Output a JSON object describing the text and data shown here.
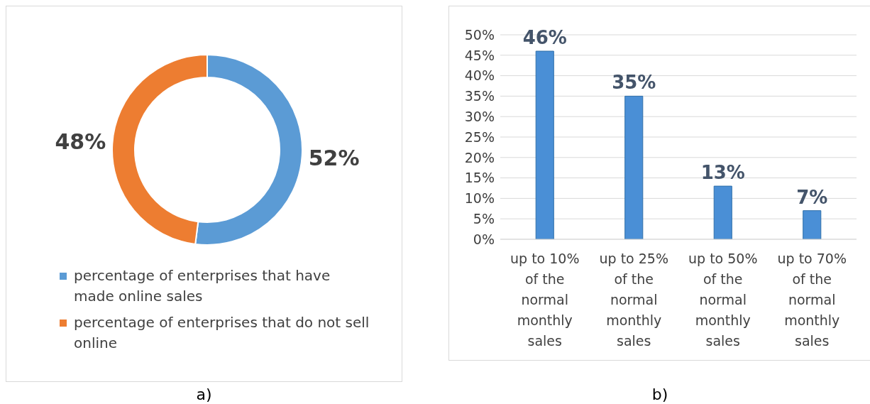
{
  "chart_data": [
    {
      "type": "donut",
      "categories": [
        "percentage of enterprises that have made online sales",
        "percentage of enterprises that do not sell online"
      ],
      "values": [
        52,
        48
      ],
      "colors": [
        "#5b9bd5",
        "#ed7d31"
      ],
      "value_labels": [
        "52%",
        "48%"
      ],
      "legend": "bottom",
      "annotations": [
        "a)"
      ]
    },
    {
      "type": "bar",
      "categories": [
        "up to 10% of the normal monthly sales",
        "up to 25% of the normal monthly sales",
        "up to 50% of the normal monthly sales",
        "up to 70% of the normal monthly sales"
      ],
      "values": [
        46,
        35,
        13,
        7
      ],
      "color": "#4a8fd6",
      "value_labels": [
        "46%",
        "35%",
        "13%",
        "7%"
      ],
      "ylim": [
        0,
        50
      ],
      "yticks": [
        {
          "value": 0,
          "label": "0%"
        },
        {
          "value": 5,
          "label": "5%"
        },
        {
          "value": 10,
          "label": "10%"
        },
        {
          "value": 15,
          "label": "15%"
        },
        {
          "value": 20,
          "label": "20%"
        },
        {
          "value": 25,
          "label": "25%"
        },
        {
          "value": 30,
          "label": "30%"
        },
        {
          "value": 35,
          "label": "35%"
        },
        {
          "value": 40,
          "label": "40%"
        },
        {
          "value": 45,
          "label": "45%"
        },
        {
          "value": 50,
          "label": "50%"
        }
      ],
      "grid": "y",
      "annotations": [
        "b)"
      ]
    }
  ]
}
